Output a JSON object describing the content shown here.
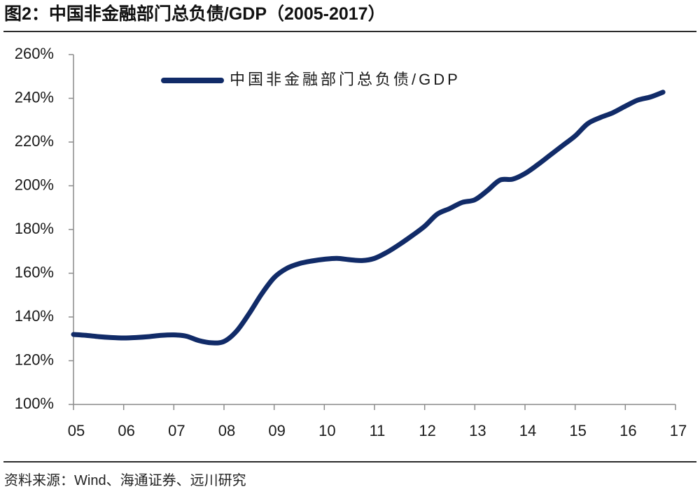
{
  "source": "资料来源：Wind、海通证券、远川研究",
  "colors": {
    "series": "#112b68",
    "axis": "#8c8c8c",
    "rule": "#2b2b2b"
  },
  "chart_data": {
    "type": "line",
    "title": "图2：中国非金融部门总负债/GDP（2005-2017）",
    "xlabel": "",
    "ylabel": "",
    "xlim": [
      5,
      17
    ],
    "xticks": [
      5,
      6,
      7,
      8,
      9,
      10,
      11,
      12,
      13,
      14,
      15,
      16,
      17
    ],
    "xtick_labels": [
      "05",
      "06",
      "07",
      "08",
      "09",
      "10",
      "11",
      "12",
      "13",
      "14",
      "15",
      "16",
      "17"
    ],
    "ylim": [
      100,
      260
    ],
    "yticks": [
      100,
      120,
      140,
      160,
      180,
      200,
      220,
      240,
      260
    ],
    "ytick_labels": [
      "100%",
      "120%",
      "140%",
      "160%",
      "180%",
      "200%",
      "220%",
      "240%",
      "260%"
    ],
    "grid": false,
    "legend_position": "top-left",
    "series": [
      {
        "name": "中国非金融部门总负债/GDP",
        "color": "#112b68",
        "x": [
          5.0,
          5.25,
          5.5,
          5.75,
          6.0,
          6.25,
          6.5,
          6.75,
          7.0,
          7.25,
          7.5,
          7.75,
          8.0,
          8.25,
          8.5,
          8.75,
          9.0,
          9.25,
          9.5,
          9.75,
          10.0,
          10.25,
          10.5,
          10.75,
          11.0,
          11.25,
          11.5,
          11.75,
          12.0,
          12.25,
          12.5,
          12.75,
          13.0,
          13.25,
          13.5,
          13.75,
          14.0,
          14.25,
          14.5,
          14.75,
          15.0,
          15.25,
          15.5,
          15.75,
          16.0,
          16.25,
          16.5,
          16.75
        ],
        "y": [
          132.0,
          131.6,
          131.0,
          130.6,
          130.4,
          130.6,
          131.0,
          131.6,
          131.8,
          131.2,
          129.2,
          128.2,
          128.8,
          133.5,
          141.5,
          150.5,
          158.0,
          162.2,
          164.4,
          165.6,
          166.4,
          166.8,
          166.2,
          165.8,
          166.8,
          169.6,
          173.2,
          177.2,
          181.5,
          187.0,
          189.6,
          192.4,
          193.6,
          197.8,
          202.6,
          203.0,
          205.6,
          209.6,
          214.0,
          218.4,
          222.8,
          228.4,
          231.2,
          233.4,
          236.4,
          239.2,
          240.6,
          242.8
        ]
      }
    ]
  }
}
